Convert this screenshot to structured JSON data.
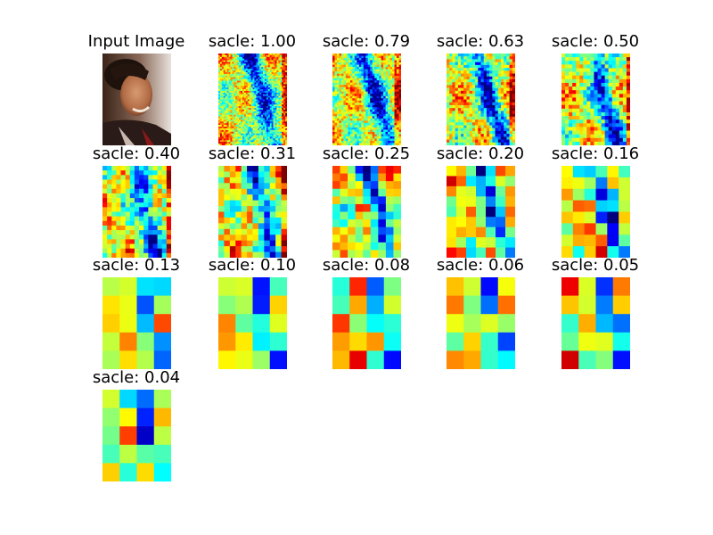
{
  "figure": {
    "panels": [
      {
        "title": "Input Image",
        "kind": "photo"
      },
      {
        "title": "sacle: 1.00",
        "kind": "heatmap"
      },
      {
        "title": "sacle: 0.79",
        "kind": "heatmap"
      },
      {
        "title": "sacle: 0.63",
        "kind": "heatmap"
      },
      {
        "title": "sacle: 0.50",
        "kind": "heatmap"
      },
      {
        "title": "sacle: 0.40",
        "kind": "heatmap"
      },
      {
        "title": "sacle: 0.31",
        "kind": "heatmap"
      },
      {
        "title": "sacle: 0.25",
        "kind": "heatmap"
      },
      {
        "title": "sacle: 0.20",
        "kind": "heatmap"
      },
      {
        "title": "sacle: 0.16",
        "kind": "heatmap"
      },
      {
        "title": "sacle: 0.13",
        "kind": "heatmap"
      },
      {
        "title": "sacle: 0.10",
        "kind": "heatmap"
      },
      {
        "title": "sacle: 0.08",
        "kind": "heatmap"
      },
      {
        "title": "sacle: 0.06",
        "kind": "heatmap"
      },
      {
        "title": "sacle: 0.05",
        "kind": "heatmap"
      },
      {
        "title": "sacle: 0.04",
        "kind": "heatmap"
      }
    ],
    "colormap": "jet",
    "jet_colors": [
      "#00007f",
      "#0000ff",
      "#0080ff",
      "#00ffff",
      "#80ff80",
      "#ffff00",
      "#ff8000",
      "#ff0000",
      "#7f0000"
    ]
  }
}
